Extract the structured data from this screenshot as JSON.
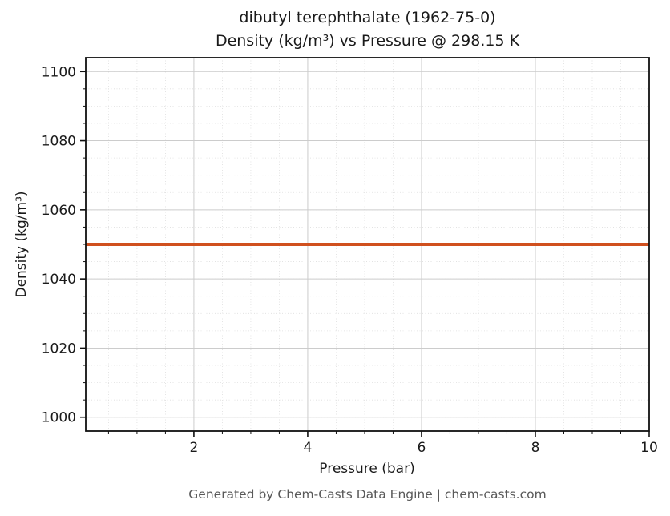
{
  "chart_data": {
    "type": "line",
    "title_lines": [
      "dibutyl terephthalate (1962-75-0)",
      "Density (kg/m³) vs Pressure @ 298.15 K"
    ],
    "xlabel": "Pressure (bar)",
    "ylabel": "Density (kg/m³)",
    "xlim": [
      0.1,
      10
    ],
    "ylim": [
      996,
      1104
    ],
    "x_ticks": [
      2,
      4,
      6,
      8,
      10
    ],
    "y_ticks": [
      1000,
      1020,
      1040,
      1060,
      1080,
      1100
    ],
    "x_minor_step": 0.5,
    "y_minor_step": 5,
    "grid": "both",
    "axis_color": "#111111",
    "major_grid_color": "#cccccc",
    "minor_grid_color": "#dedede",
    "series": [
      {
        "name": "density",
        "color": "#d0501e",
        "linewidth": 4,
        "x": [
          0.1,
          10
        ],
        "y": [
          1050,
          1050
        ]
      }
    ],
    "footer": "Generated by Chem-Casts Data Engine | chem-casts.com"
  }
}
